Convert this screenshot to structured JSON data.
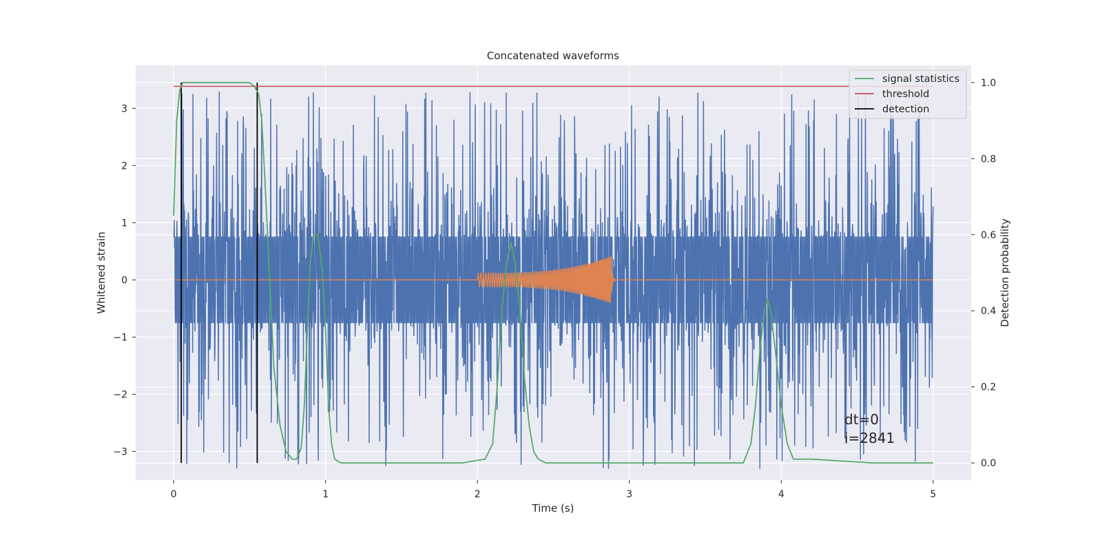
{
  "chart_data": {
    "type": "line",
    "title": "Concatenated waveforms",
    "xlabel": "Time (s)",
    "ylabel": "Whitened strain",
    "y2label": "Detection probability",
    "xlim": [
      -0.25,
      5.25
    ],
    "ylim": [
      -3.5,
      3.75
    ],
    "y2lim": [
      -0.045,
      1.045
    ],
    "xticks": [
      0,
      1,
      2,
      3,
      4,
      5
    ],
    "yticks": [
      -3,
      -2,
      -1,
      0,
      1,
      2,
      3
    ],
    "y2ticks": [
      0.0,
      0.2,
      0.4,
      0.6,
      0.8,
      1.0
    ],
    "xtick_labels": [
      "0",
      "1",
      "2",
      "3",
      "4",
      "5"
    ],
    "ytick_labels": [
      "−3",
      "−2",
      "−1",
      "0",
      "1",
      "2",
      "3"
    ],
    "y2tick_labels": [
      "0.0",
      "0.2",
      "0.4",
      "0.6",
      "0.8",
      "1.0"
    ],
    "grid": true,
    "legend_position": "upper-right",
    "legend": [
      "signal statistics",
      "threshold",
      "detection"
    ],
    "colors": {
      "strain": "#4c72b0",
      "injection": "#dd8452",
      "signal_statistics": "#55a868",
      "threshold": "#c44e52",
      "detection": "#000000",
      "plot_bg": "#eaeaf2",
      "grid": "#ffffff"
    },
    "strain": {
      "x_range": [
        0,
        5
      ],
      "core_amplitude": 0.75,
      "spike_amplitude": 3.3,
      "seed": 2841
    },
    "injection": {
      "start": 2.0,
      "merger": 2.88,
      "amp_start": 0.12,
      "amp_peak": 0.42
    },
    "signal_statistics": {
      "x": [
        0.0,
        0.02,
        0.04,
        0.06,
        0.08,
        0.1,
        0.3,
        0.5,
        0.53,
        0.56,
        0.58,
        0.6,
        0.63,
        0.66,
        0.7,
        0.74,
        0.78,
        0.81,
        0.84,
        0.86,
        0.88,
        0.9,
        0.92,
        0.95,
        0.98,
        1.0,
        1.02,
        1.04,
        1.06,
        1.1,
        1.5,
        1.9,
        2.05,
        2.1,
        2.13,
        2.16,
        2.19,
        2.22,
        2.25,
        2.28,
        2.31,
        2.34,
        2.37,
        2.4,
        2.45,
        2.6,
        3.75,
        3.8,
        3.83,
        3.86,
        3.89,
        3.91,
        3.93,
        3.96,
        4.0,
        4.04,
        4.08,
        4.12,
        4.2,
        4.4,
        4.6,
        4.8,
        5.0
      ],
      "y": [
        0.65,
        0.9,
        0.98,
        1.0,
        1.0,
        1.0,
        1.0,
        1.0,
        0.99,
        0.97,
        0.9,
        0.75,
        0.5,
        0.25,
        0.1,
        0.03,
        0.01,
        0.01,
        0.04,
        0.15,
        0.35,
        0.53,
        0.6,
        0.6,
        0.5,
        0.35,
        0.15,
        0.05,
        0.01,
        0.0,
        0.0,
        0.0,
        0.01,
        0.05,
        0.2,
        0.4,
        0.52,
        0.58,
        0.52,
        0.4,
        0.22,
        0.1,
        0.03,
        0.01,
        0.0,
        0.0,
        0.0,
        0.05,
        0.15,
        0.3,
        0.4,
        0.43,
        0.4,
        0.3,
        0.15,
        0.05,
        0.01,
        0.01,
        0.01,
        0.005,
        0.0,
        0.0,
        0.0
      ]
    },
    "threshold": {
      "value": 0.99,
      "x_range": [
        0,
        5
      ]
    },
    "detections": [
      0.05,
      0.55
    ],
    "annotations": [
      "dt=0",
      "i=2841"
    ]
  }
}
